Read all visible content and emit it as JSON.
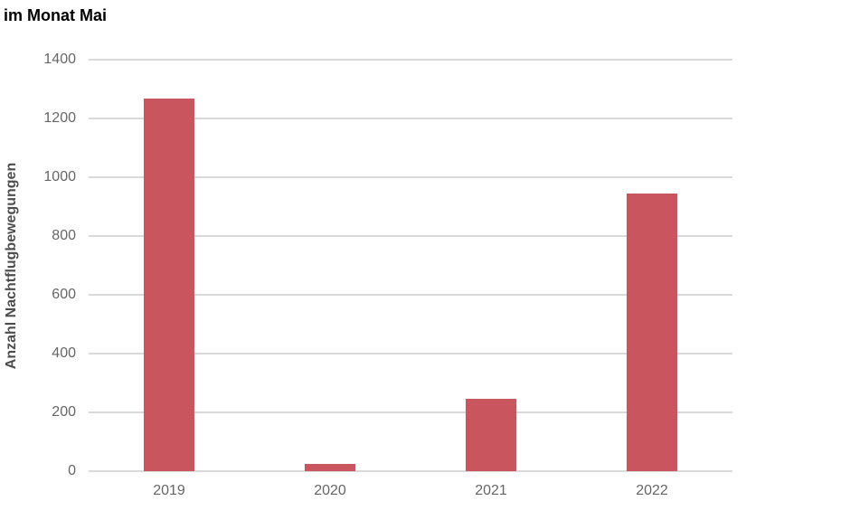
{
  "chart_data": {
    "type": "bar",
    "title": "im Monat Mai",
    "xlabel": "",
    "ylabel": "Anzahl Nachtflugbewegungen",
    "categories": [
      "2019",
      "2020",
      "2021",
      "2022"
    ],
    "values": [
      1268,
      25,
      246,
      946
    ],
    "series_name": "Anzahl Nachtflugbewegungen",
    "ylim": [
      0,
      1400
    ],
    "ytick_step": 200,
    "yticks": [
      "0",
      "200",
      "400",
      "600",
      "800",
      "1000",
      "1200",
      "1400"
    ],
    "grid": "horizontal-on",
    "legend": "none",
    "colors": {
      "bar": "#c9555e",
      "gridline": "#d9d9d9",
      "tick_label": "#666666",
      "axis_title": "#4d4d4d",
      "title": "#000000",
      "background": "#ffffff"
    }
  }
}
